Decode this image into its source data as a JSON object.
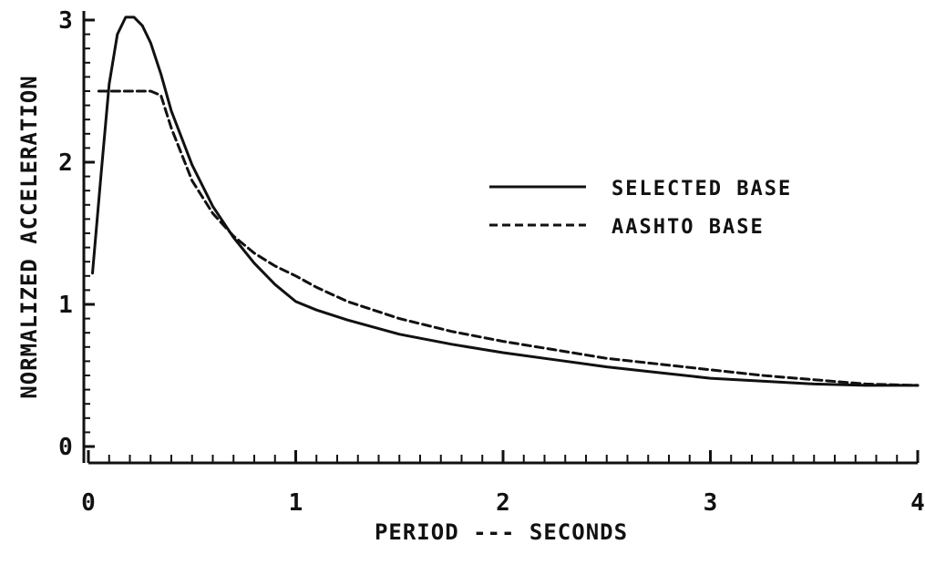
{
  "chart_data": {
    "type": "line",
    "title": "",
    "xlabel": "PERIOD --- SECONDS",
    "ylabel": "NORMALIZED ACCELERATION",
    "xlim": [
      0,
      4
    ],
    "ylim": [
      0,
      3
    ],
    "x_ticks": [
      "0",
      "1",
      "2",
      "3",
      "4"
    ],
    "y_ticks": [
      "0",
      "1",
      "2",
      "3"
    ],
    "grid": false,
    "legend_position": "center-right",
    "series": [
      {
        "name": "SELECTED BASE",
        "style": "solid",
        "color": "#111111",
        "x": [
          0.02,
          0.06,
          0.1,
          0.14,
          0.18,
          0.22,
          0.26,
          0.3,
          0.35,
          0.4,
          0.5,
          0.6,
          0.7,
          0.8,
          0.9,
          1.0,
          1.1,
          1.25,
          1.5,
          1.75,
          2.0,
          2.25,
          2.5,
          2.75,
          3.0,
          3.25,
          3.5,
          3.75,
          4.0
        ],
        "y": [
          1.22,
          1.9,
          2.55,
          2.9,
          3.02,
          3.02,
          2.96,
          2.84,
          2.62,
          2.36,
          1.98,
          1.69,
          1.47,
          1.29,
          1.14,
          1.02,
          0.96,
          0.89,
          0.79,
          0.72,
          0.66,
          0.61,
          0.56,
          0.52,
          0.48,
          0.46,
          0.44,
          0.43,
          0.43
        ]
      },
      {
        "name": "AASHTO BASE",
        "style": "dashed",
        "color": "#111111",
        "x": [
          0.05,
          0.1,
          0.2,
          0.3,
          0.35,
          0.4,
          0.5,
          0.6,
          0.7,
          0.8,
          0.9,
          1.0,
          1.1,
          1.25,
          1.5,
          1.75,
          2.0,
          2.25,
          2.5,
          2.75,
          3.0,
          3.25,
          3.5,
          3.75,
          4.0
        ],
        "y": [
          2.5,
          2.5,
          2.5,
          2.5,
          2.47,
          2.24,
          1.87,
          1.64,
          1.48,
          1.36,
          1.27,
          1.2,
          1.12,
          1.02,
          0.9,
          0.81,
          0.74,
          0.68,
          0.62,
          0.58,
          0.54,
          0.5,
          0.47,
          0.44,
          0.43
        ]
      }
    ]
  }
}
